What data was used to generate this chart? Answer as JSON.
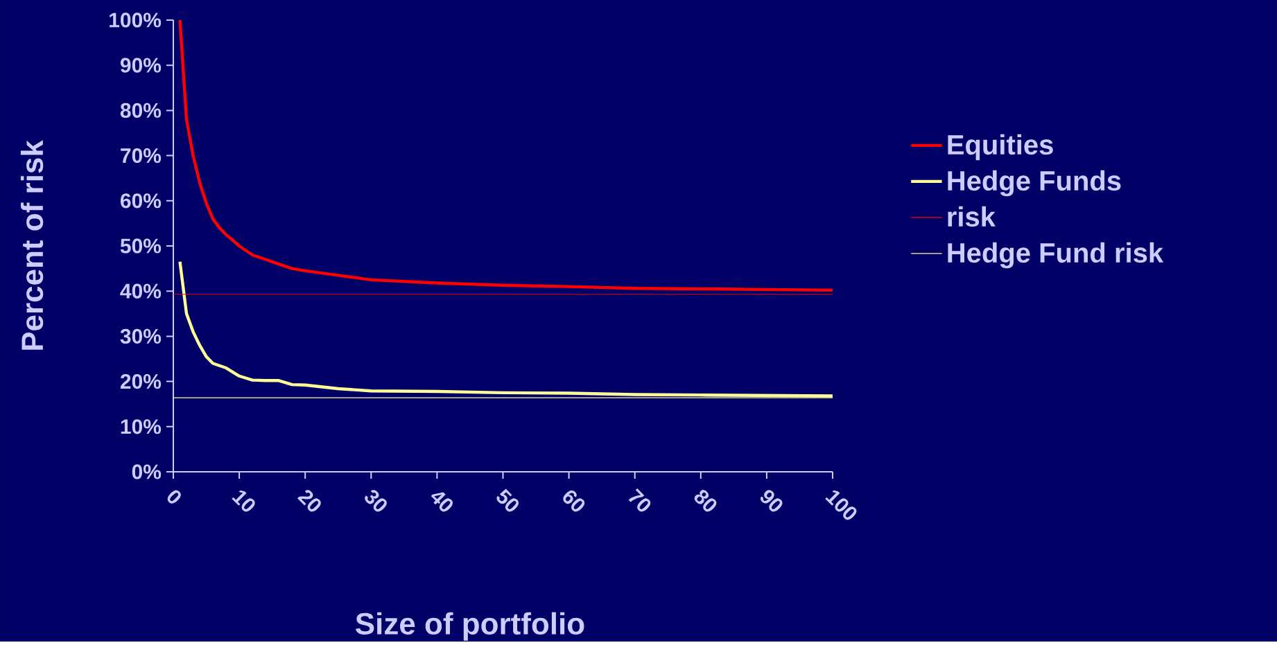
{
  "chart_data": {
    "type": "line",
    "xlabel": "Size of portfolio",
    "ylabel": "Percent of risk",
    "x": [
      1,
      2,
      3,
      4,
      5,
      6,
      7,
      8,
      10,
      12,
      14,
      16,
      18,
      20,
      25,
      30,
      40,
      50,
      60,
      70,
      80,
      100
    ],
    "series": [
      {
        "name": "Equities",
        "color": "#ff0000",
        "values": [
          100,
          78,
          70,
          64,
          59.5,
          56,
          54,
          52.5,
          50,
          48,
          47,
          46,
          45,
          44.5,
          43.5,
          42.5,
          41.8,
          41.3,
          41,
          40.6,
          40.5,
          40.2
        ]
      },
      {
        "name": "Hedge Funds",
        "color": "#ffff99",
        "values": [
          46.5,
          35,
          31,
          28,
          25.5,
          24,
          23.5,
          23,
          21.2,
          20.3,
          20.2,
          20.2,
          19.3,
          19.2,
          18.4,
          17.9,
          17.8,
          17.5,
          17.4,
          17.1,
          17,
          16.8
        ]
      }
    ],
    "ref_lines": [
      {
        "axis": "y",
        "value": 39.3,
        "label": "risk",
        "color": "#ff0000"
      },
      {
        "axis": "y",
        "value": 16.4,
        "label": "Hedge Fund risk",
        "color": "#ffff99"
      }
    ],
    "xlim": [
      0,
      100
    ],
    "xticks": [
      0,
      10,
      20,
      30,
      40,
      50,
      60,
      70,
      80,
      90,
      100
    ],
    "ylim": [
      0,
      100
    ],
    "yticks": [
      {
        "value": 0,
        "label": "0%"
      },
      {
        "value": 10,
        "label": "10%"
      },
      {
        "value": 20,
        "label": "20%"
      },
      {
        "value": 30,
        "label": "30%"
      },
      {
        "value": 40,
        "label": "40%"
      },
      {
        "value": 50,
        "label": "50%"
      },
      {
        "value": 60,
        "label": "60%"
      },
      {
        "value": 70,
        "label": "70%"
      },
      {
        "value": 80,
        "label": "80%"
      },
      {
        "value": 90,
        "label": "90%"
      },
      {
        "value": 100,
        "label": "100%"
      }
    ],
    "grid": false,
    "legend": "right",
    "marker": "none",
    "line_style": "solid"
  }
}
